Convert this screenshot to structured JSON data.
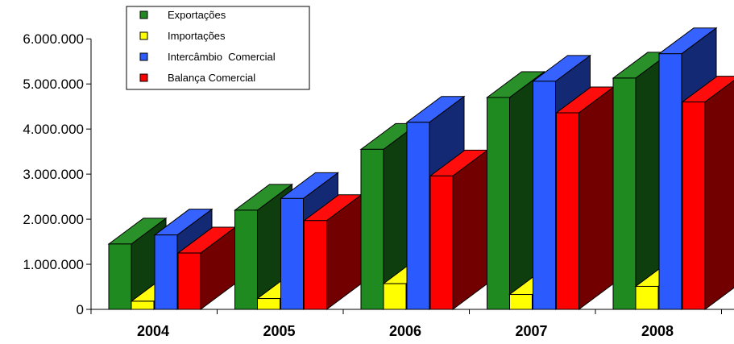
{
  "chart_data": {
    "type": "bar",
    "categories": [
      "2004",
      "2005",
      "2006",
      "2007",
      "2008"
    ],
    "series": [
      {
        "name": "Exportações",
        "color": "#1f8a1f",
        "values": [
          1450000,
          2200000,
          3550000,
          4700000,
          5130000
        ]
      },
      {
        "name": "Importações",
        "color": "#ffff00",
        "values": [
          180000,
          240000,
          570000,
          330000,
          510000
        ]
      },
      {
        "name": "Intercâmbio  Comercial",
        "color": "#2b5bff",
        "values": [
          1650000,
          2460000,
          4150000,
          5060000,
          5670000
        ]
      },
      {
        "name": "Balança Comercial",
        "color": "#ff0000",
        "values": [
          1250000,
          1970000,
          2960000,
          4360000,
          4600000
        ]
      }
    ],
    "ylim": [
      0,
      6000000
    ],
    "yticks": [
      0,
      1000000,
      2000000,
      3000000,
      4000000,
      5000000,
      6000000
    ],
    "ytick_labels": [
      "0",
      "1.000.000",
      "2.000.000",
      "3.000.000",
      "4.000.000",
      "5.000.000",
      "6.000.000"
    ],
    "legend": "top-left",
    "grid": false,
    "title": "",
    "xlabel": "",
    "ylabel": ""
  }
}
